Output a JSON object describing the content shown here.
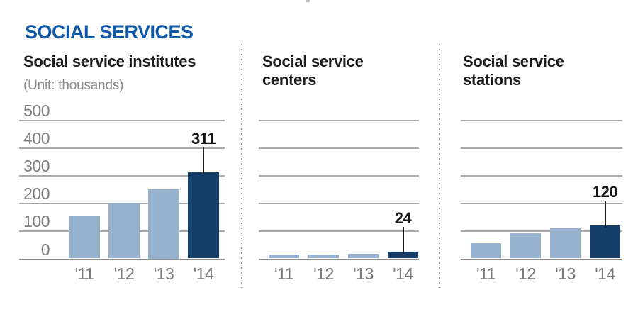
{
  "header": {
    "title": "SOCIAL SERVICES"
  },
  "chart_data": [
    {
      "type": "bar",
      "title": "Social service institutes",
      "unit_label": "(Unit: thousands)",
      "categories": [
        "'11",
        "'12",
        "'13",
        "'14"
      ],
      "values": [
        155,
        200,
        250,
        311
      ],
      "highlight_index": 3,
      "annotation": {
        "index": 3,
        "label": "311"
      },
      "ylim": [
        0,
        500
      ],
      "yticks": [
        500,
        400,
        300,
        200,
        100,
        0
      ],
      "ytick_labels_visible": true,
      "grid": true,
      "legend": "none"
    },
    {
      "type": "bar",
      "title": "Social service centers",
      "categories": [
        "'11",
        "'12",
        "'13",
        "'14"
      ],
      "values": [
        13,
        14,
        16,
        24
      ],
      "highlight_index": 3,
      "annotation": {
        "index": 3,
        "label": "24"
      },
      "ylim": [
        0,
        500
      ],
      "yticks": [
        500,
        400,
        300,
        200,
        100,
        0
      ],
      "ytick_labels_visible": false,
      "grid": true,
      "legend": "none"
    },
    {
      "type": "bar",
      "title": "Social service stations",
      "categories": [
        "'11",
        "'12",
        "'13",
        "'14"
      ],
      "values": [
        55,
        90,
        108,
        120
      ],
      "highlight_index": 3,
      "annotation": {
        "index": 3,
        "label": "120"
      },
      "ylim": [
        0,
        500
      ],
      "yticks": [
        500,
        400,
        300,
        200,
        100,
        0
      ],
      "ytick_labels_visible": false,
      "grid": true,
      "legend": "none"
    }
  ],
  "colors": {
    "title_blue": "#0f59a8",
    "bar_light": "#97b2cf",
    "bar_dark": "#153e68",
    "grid_line": "#a9a9a9",
    "axis_line": "#8d8d8d",
    "text_dark": "#1c1c1c",
    "text_gray": "#7e7e7e",
    "divider_dot": "#949494"
  }
}
